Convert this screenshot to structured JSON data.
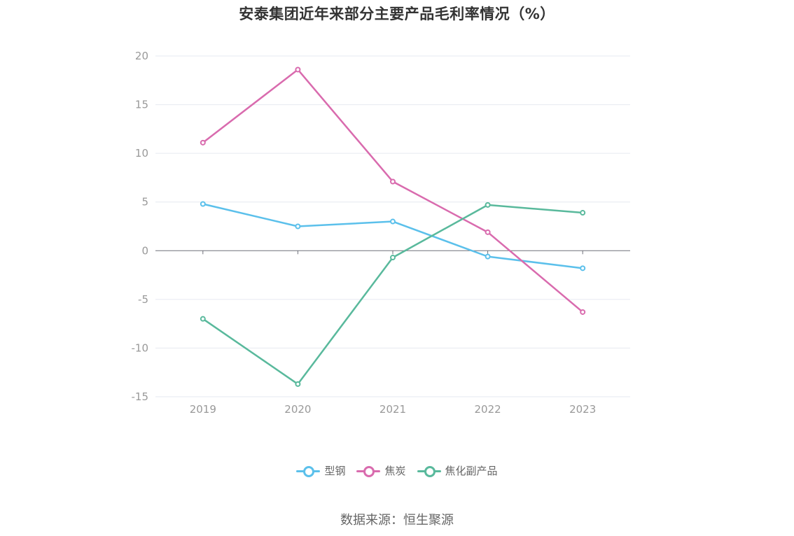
{
  "title": "安泰集团近年来部分主要产品毛利率情况（%）",
  "source": "数据来源：恒生聚源",
  "chart_data": {
    "type": "line",
    "title": "安泰集团近年来部分主要产品毛利率情况（%）",
    "categories": [
      "2019",
      "2020",
      "2021",
      "2022",
      "2023"
    ],
    "ylim": [
      -15,
      20
    ],
    "yticks": [
      -15,
      -10,
      -5,
      0,
      5,
      10,
      15,
      20
    ],
    "grid": true,
    "legend_position": "bottom",
    "series": [
      {
        "name": "型钢",
        "color": "#5bc0eb",
        "values": [
          4.8,
          2.5,
          3.0,
          -0.6,
          -1.8
        ]
      },
      {
        "name": "焦炭",
        "color": "#d96bae",
        "values": [
          11.1,
          18.6,
          7.1,
          1.9,
          -6.3
        ]
      },
      {
        "name": "焦化副产品",
        "color": "#59b99c",
        "values": [
          -7.0,
          -13.7,
          -0.7,
          4.7,
          3.9
        ]
      }
    ]
  }
}
